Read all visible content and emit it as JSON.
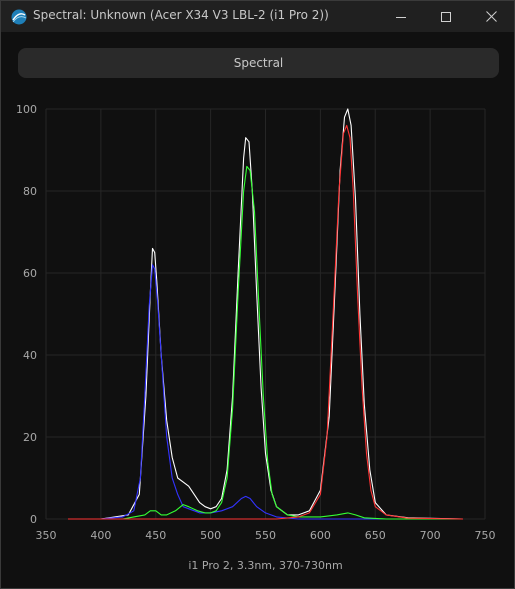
{
  "window": {
    "title": "Spectral: Unknown (Acer X34 V3 LBL-2 (i1 Pro 2))",
    "controls": {
      "minimize": "minimize",
      "maximize": "maximize",
      "close": "close"
    }
  },
  "toolbar": {
    "spectral_label": "Spectral"
  },
  "chart_data": {
    "type": "line",
    "title": "",
    "xlabel": "i1 Pro 2, 3.3nm, 370-730nm",
    "ylabel": "",
    "xlim": [
      350,
      750
    ],
    "ylim": [
      0,
      100
    ],
    "x_ticks": [
      350,
      400,
      450,
      500,
      550,
      600,
      650,
      700,
      750
    ],
    "y_ticks": [
      0,
      20,
      40,
      60,
      80,
      100
    ],
    "grid": true,
    "background": "#101010",
    "series": [
      {
        "color": "#ffffff",
        "points": [
          [
            370,
            0
          ],
          [
            400,
            0
          ],
          [
            425,
            1
          ],
          [
            435,
            6
          ],
          [
            441,
            30
          ],
          [
            445,
            55
          ],
          [
            447,
            66
          ],
          [
            449,
            65
          ],
          [
            451,
            58
          ],
          [
            455,
            40
          ],
          [
            460,
            24
          ],
          [
            465,
            15
          ],
          [
            470,
            10
          ],
          [
            475,
            9
          ],
          [
            480,
            8
          ],
          [
            485,
            6
          ],
          [
            490,
            4
          ],
          [
            495,
            3
          ],
          [
            500,
            2.5
          ],
          [
            505,
            3
          ],
          [
            510,
            5
          ],
          [
            515,
            12
          ],
          [
            520,
            30
          ],
          [
            525,
            60
          ],
          [
            530,
            88
          ],
          [
            532,
            93
          ],
          [
            535,
            92
          ],
          [
            538,
            80
          ],
          [
            542,
            55
          ],
          [
            546,
            32
          ],
          [
            550,
            16
          ],
          [
            555,
            7
          ],
          [
            560,
            3
          ],
          [
            570,
            1
          ],
          [
            580,
            1
          ],
          [
            590,
            2
          ],
          [
            600,
            7
          ],
          [
            608,
            25
          ],
          [
            614,
            60
          ],
          [
            618,
            85
          ],
          [
            622,
            98
          ],
          [
            625,
            100
          ],
          [
            628,
            96
          ],
          [
            632,
            78
          ],
          [
            636,
            50
          ],
          [
            640,
            28
          ],
          [
            645,
            12
          ],
          [
            650,
            4
          ],
          [
            660,
            1
          ],
          [
            680,
            0.3
          ],
          [
            730,
            0
          ]
        ]
      },
      {
        "color": "#3333ff",
        "points": [
          [
            370,
            0
          ],
          [
            400,
            0
          ],
          [
            420,
            0.5
          ],
          [
            430,
            2
          ],
          [
            436,
            10
          ],
          [
            440,
            30
          ],
          [
            444,
            52
          ],
          [
            447,
            62
          ],
          [
            449,
            61
          ],
          [
            452,
            52
          ],
          [
            456,
            36
          ],
          [
            460,
            20
          ],
          [
            465,
            10
          ],
          [
            470,
            6
          ],
          [
            475,
            3
          ],
          [
            480,
            2.5
          ],
          [
            485,
            2
          ],
          [
            490,
            1.5
          ],
          [
            500,
            1.5
          ],
          [
            510,
            2
          ],
          [
            520,
            3
          ],
          [
            528,
            5
          ],
          [
            532,
            5.5
          ],
          [
            536,
            5
          ],
          [
            542,
            3
          ],
          [
            550,
            1.5
          ],
          [
            560,
            0.5
          ],
          [
            580,
            0
          ],
          [
            730,
            0
          ]
        ]
      },
      {
        "color": "#33ff33",
        "points": [
          [
            370,
            0
          ],
          [
            420,
            0
          ],
          [
            430,
            0.5
          ],
          [
            440,
            1
          ],
          [
            445,
            2
          ],
          [
            450,
            2
          ],
          [
            455,
            1
          ],
          [
            460,
            1
          ],
          [
            468,
            2
          ],
          [
            475,
            3.5
          ],
          [
            480,
            3
          ],
          [
            488,
            2
          ],
          [
            495,
            1.5
          ],
          [
            500,
            1.5
          ],
          [
            505,
            2
          ],
          [
            510,
            4
          ],
          [
            515,
            10
          ],
          [
            520,
            27
          ],
          [
            525,
            55
          ],
          [
            530,
            80
          ],
          [
            533,
            86
          ],
          [
            536,
            85
          ],
          [
            540,
            75
          ],
          [
            544,
            52
          ],
          [
            548,
            30
          ],
          [
            552,
            14
          ],
          [
            556,
            6
          ],
          [
            560,
            3
          ],
          [
            570,
            1
          ],
          [
            580,
            0.5
          ],
          [
            600,
            0.5
          ],
          [
            615,
            1
          ],
          [
            625,
            1.5
          ],
          [
            632,
            1
          ],
          [
            640,
            0.3
          ],
          [
            660,
            0
          ],
          [
            730,
            0
          ]
        ]
      },
      {
        "color": "#ff3333",
        "points": [
          [
            370,
            0
          ],
          [
            560,
            0
          ],
          [
            580,
            0.5
          ],
          [
            590,
            1.5
          ],
          [
            600,
            6
          ],
          [
            606,
            20
          ],
          [
            612,
            52
          ],
          [
            617,
            80
          ],
          [
            621,
            94
          ],
          [
            624,
            96
          ],
          [
            627,
            93
          ],
          [
            630,
            80
          ],
          [
            634,
            54
          ],
          [
            638,
            32
          ],
          [
            642,
            16
          ],
          [
            646,
            7
          ],
          [
            650,
            3
          ],
          [
            660,
            1
          ],
          [
            680,
            0.2
          ],
          [
            730,
            0
          ]
        ]
      }
    ]
  }
}
